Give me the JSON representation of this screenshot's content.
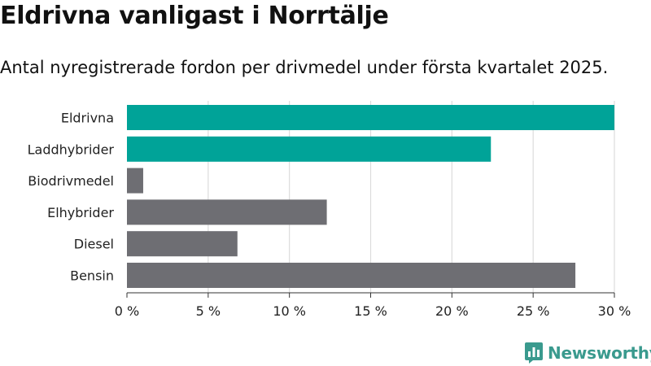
{
  "title": "Eldrivna vanligast i Norrtälje",
  "subtitle": "Antal nyregistrerade fordon per drivmedel under första kvartalet 2025.",
  "brand": {
    "name": "Newsworthy",
    "icon": "newsworthy-logo-icon",
    "color": "#3a9a8e"
  },
  "chart_data": {
    "type": "bar",
    "orientation": "horizontal",
    "categories": [
      "Eldrivna",
      "Laddhybrider",
      "Biodrivmedel",
      "Elhybrider",
      "Diesel",
      "Bensin"
    ],
    "values": [
      30.0,
      22.4,
      1.0,
      12.3,
      6.8,
      27.6
    ],
    "bar_colors": [
      "#00a398",
      "#00a398",
      "#6e6e73",
      "#6e6e73",
      "#6e6e73",
      "#6e6e73"
    ],
    "xlim": [
      0,
      30
    ],
    "x_ticks": [
      0,
      5,
      10,
      15,
      20,
      25,
      30
    ],
    "x_tick_labels": [
      "0 %",
      "5 %",
      "10 %",
      "15 %",
      "20 %",
      "25 %",
      "30 %"
    ],
    "grid": true,
    "xlabel": "",
    "ylabel": ""
  }
}
